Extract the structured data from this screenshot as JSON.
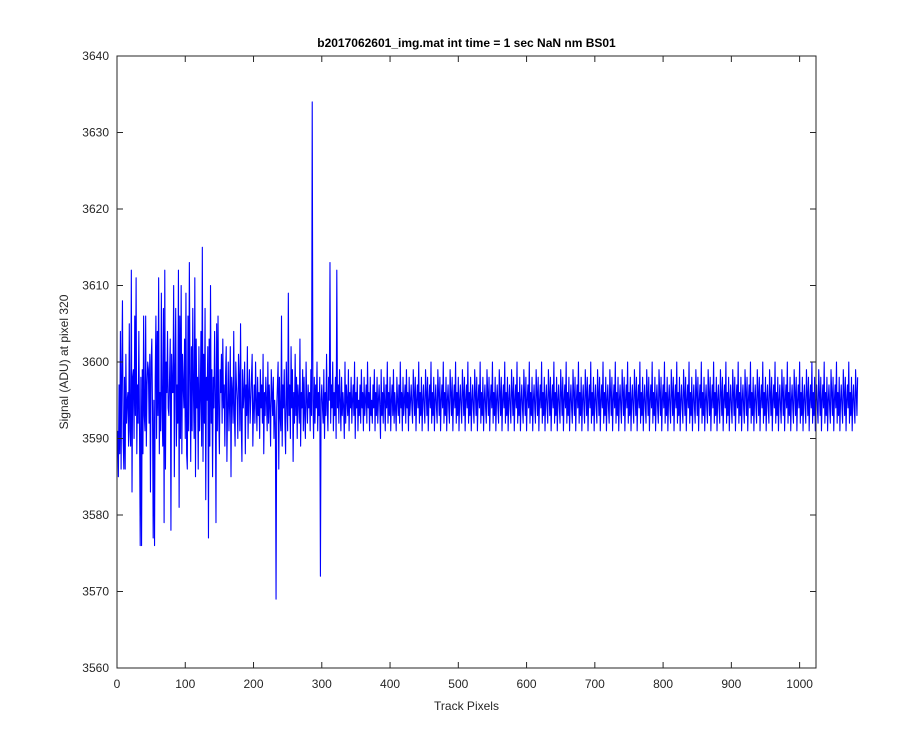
{
  "chart_data": {
    "type": "line",
    "title": "b2017062601_img.mat int time = 1 sec  NaN nm BS01",
    "xlabel": "Track Pixels",
    "ylabel": "Signal (ADU) at pixel 320",
    "xlim": [
      0,
      1024
    ],
    "ylim": [
      3560,
      3640
    ],
    "xticks": [
      0,
      100,
      200,
      300,
      400,
      500,
      600,
      700,
      800,
      900,
      1000
    ],
    "yticks": [
      3560,
      3570,
      3580,
      3590,
      3600,
      3610,
      3620,
      3630,
      3640
    ],
    "xtick_labels": [
      "0",
      "100",
      "200",
      "300",
      "400",
      "500",
      "600",
      "700",
      "800",
      "900",
      "1000"
    ],
    "ytick_labels": [
      "3560",
      "3570",
      "3580",
      "3590",
      "3600",
      "3610",
      "3620",
      "3630",
      "3640"
    ],
    "grid": false,
    "series": [
      {
        "color": "#0000ff",
        "x_start": 1,
        "x_step": 1,
        "values": [
          3591,
          3585,
          3597,
          3588,
          3604,
          3586,
          3599,
          3608,
          3590,
          3586,
          3598,
          3586,
          3601,
          3592,
          3595,
          3596,
          3589,
          3605,
          3591,
          3589,
          3612,
          3583,
          3598,
          3599,
          3590,
          3606,
          3593,
          3611,
          3588,
          3597,
          3592,
          3604,
          3591,
          3576,
          3598,
          3576,
          3599,
          3588,
          3606,
          3593,
          3591,
          3606,
          3589,
          3597,
          3600,
          3599,
          3592,
          3601,
          3583,
          3600,
          3603,
          3594,
          3577,
          3595,
          3576,
          3598,
          3606,
          3590,
          3604,
          3593,
          3611,
          3588,
          3596,
          3591,
          3609,
          3594,
          3589,
          3607,
          3579,
          3612,
          3586,
          3600,
          3596,
          3604,
          3594,
          3593,
          3598,
          3603,
          3578,
          3601,
          3596,
          3596,
          3610,
          3585,
          3599,
          3607,
          3589,
          3597,
          3592,
          3612,
          3581,
          3606,
          3590,
          3610,
          3588,
          3601,
          3597,
          3594,
          3603,
          3590,
          3609,
          3588,
          3586,
          3606,
          3591,
          3613,
          3598,
          3587,
          3602,
          3591,
          3607,
          3596,
          3590,
          3611,
          3585,
          3603,
          3594,
          3598,
          3586,
          3602,
          3591,
          3595,
          3604,
          3589,
          3615,
          3587,
          3601,
          3592,
          3607,
          3582,
          3598,
          3595,
          3602,
          3577,
          3603,
          3589,
          3610,
          3592,
          3599,
          3585,
          3598,
          3594,
          3604,
          3596,
          3579,
          3605,
          3591,
          3606,
          3593,
          3588,
          3599,
          3596,
          3601,
          3592,
          3603,
          3594,
          3597,
          3589,
          3598,
          3602,
          3587,
          3594,
          3600,
          3591,
          3595,
          3602,
          3585,
          3598,
          3596,
          3592,
          3604,
          3593,
          3589,
          3600,
          3597,
          3595,
          3590,
          3601,
          3598,
          3591,
          3605,
          3592,
          3587,
          3599,
          3594,
          3596,
          3600,
          3588,
          3597,
          3593,
          3602,
          3590,
          3596,
          3599,
          3592,
          3595,
          3598,
          3601,
          3589,
          3594,
          3597,
          3592,
          3600,
          3595,
          3591,
          3598,
          3593,
          3596,
          3590,
          3599,
          3594,
          3597,
          3592,
          3601,
          3588,
          3596,
          3593,
          3598,
          3595,
          3591,
          3600,
          3592,
          3597,
          3594,
          3589,
          3599,
          3596,
          3593,
          3598,
          3590,
          3595,
          3592,
          3569,
          3594,
          3597,
          3600,
          3586,
          3598,
          3593,
          3591,
          3606,
          3589,
          3597,
          3594,
          3599,
          3592,
          3588,
          3600,
          3595,
          3591,
          3609,
          3593,
          3597,
          3590,
          3602,
          3594,
          3599,
          3587,
          3596,
          3592,
          3601,
          3593,
          3598,
          3590,
          3597,
          3595,
          3592,
          3603,
          3589,
          3596,
          3594,
          3599,
          3591,
          3598,
          3593,
          3590,
          3600,
          3595,
          3592,
          3597,
          3594,
          3596,
          3591,
          3599,
          3593,
          3634,
          3595,
          3590,
          3598,
          3592,
          3597,
          3594,
          3600,
          3591,
          3596,
          3593,
          3598,
          3572,
          3595,
          3597,
          3594,
          3592,
          3599,
          3590,
          3596,
          3593,
          3601,
          3594,
          3591,
          3598,
          3595,
          3613,
          3592,
          3597,
          3594,
          3600,
          3591,
          3596,
          3593,
          3598,
          3590,
          3612,
          3594,
          3597,
          3592,
          3599,
          3595,
          3591,
          3598,
          3593,
          3596,
          3594,
          3590,
          3600,
          3592,
          3597,
          3595,
          3593,
          3599,
          3591,
          3596,
          3594,
          3598,
          3592,
          3595,
          3597,
          3593,
          3600,
          3590,
          3596,
          3594,
          3598,
          3591,
          3595,
          3593,
          3597,
          3592,
          3599,
          3594,
          3596,
          3591,
          3598,
          3593,
          3595,
          3597,
          3592,
          3600,
          3594,
          3596,
          3591,
          3598,
          3593,
          3595,
          3592,
          3597,
          3594,
          3599,
          3591,
          3596,
          3593,
          3598,
          3592,
          3595,
          3597,
          3594,
          3590,
          3599,
          3593,
          3596,
          3592,
          3598,
          3595,
          3591,
          3597,
          3594,
          3600,
          3592,
          3596,
          3593,
          3598,
          3591,
          3595,
          3597,
          3593,
          3599,
          3592,
          3596,
          3594,
          3591,
          3598,
          3595,
          3593,
          3597,
          3592,
          3600,
          3594,
          3596,
          3591,
          3598,
          3593,
          3595,
          3597,
          3592,
          3599,
          3594,
          3596,
          3591,
          3598,
          3593,
          3595,
          3597,
          3594,
          3592,
          3599,
          3596,
          3593,
          3598,
          3591,
          3595,
          3597,
          3594,
          3600,
          3592,
          3596,
          3593,
          3598,
          3591,
          3595,
          3597,
          3594,
          3592,
          3599,
          3596,
          3593,
          3598,
          3591,
          3595,
          3597,
          3594,
          3600,
          3592,
          3596,
          3593,
          3598,
          3591,
          3595,
          3597,
          3594,
          3592,
          3599,
          3596,
          3593,
          3598,
          3591,
          3595,
          3597,
          3594,
          3600,
          3592,
          3596,
          3593,
          3598,
          3591,
          3595,
          3597,
          3594,
          3592,
          3599,
          3596,
          3593,
          3598,
          3591,
          3595,
          3597,
          3594,
          3600,
          3592,
          3596,
          3593,
          3598,
          3591,
          3595,
          3597,
          3594,
          3592,
          3599,
          3596,
          3593,
          3598,
          3591,
          3595,
          3597,
          3594,
          3600,
          3592,
          3596,
          3593,
          3598,
          3591,
          3595,
          3597,
          3594,
          3592,
          3599,
          3596,
          3593,
          3598,
          3591,
          3595,
          3597,
          3594,
          3600,
          3592,
          3596,
          3593,
          3598,
          3591,
          3595,
          3597,
          3594,
          3592,
          3599,
          3596,
          3593,
          3598,
          3591,
          3595,
          3597,
          3594,
          3600,
          3592,
          3596,
          3593,
          3598,
          3591,
          3595,
          3597,
          3594,
          3592,
          3599,
          3596,
          3593,
          3598,
          3591,
          3595,
          3597,
          3594,
          3600,
          3592,
          3596,
          3593,
          3598,
          3591,
          3595,
          3597,
          3594,
          3592,
          3599,
          3596,
          3593,
          3598,
          3591,
          3595,
          3597,
          3594,
          3600,
          3592,
          3596,
          3593,
          3598,
          3591,
          3595,
          3597,
          3594,
          3592,
          3599,
          3596,
          3593,
          3598,
          3591,
          3595,
          3597,
          3594,
          3600,
          3592,
          3596,
          3593,
          3598,
          3591,
          3595,
          3597,
          3594,
          3592,
          3599,
          3596,
          3593,
          3598,
          3591,
          3595,
          3597,
          3594,
          3600,
          3592,
          3596,
          3593,
          3598,
          3591,
          3595,
          3597,
          3594,
          3592,
          3599,
          3596,
          3593,
          3598,
          3591,
          3595,
          3597,
          3594,
          3600,
          3592,
          3596,
          3593,
          3598,
          3591,
          3595,
          3597,
          3594,
          3592,
          3599,
          3596,
          3593,
          3598,
          3591,
          3595,
          3597,
          3594,
          3600,
          3592,
          3596,
          3593,
          3598,
          3591,
          3595,
          3597,
          3594,
          3592,
          3599,
          3596,
          3593,
          3598,
          3591,
          3595,
          3597,
          3594,
          3600,
          3592,
          3596,
          3593,
          3598,
          3591,
          3595,
          3597,
          3594,
          3592,
          3599,
          3596,
          3593,
          3598,
          3591,
          3595,
          3597,
          3594,
          3600,
          3592,
          3596,
          3593,
          3598,
          3591,
          3595,
          3597,
          3594,
          3592,
          3599,
          3596,
          3593,
          3598,
          3591,
          3595,
          3597,
          3594,
          3600,
          3592,
          3596,
          3593,
          3598,
          3591,
          3595,
          3597,
          3594,
          3592,
          3599,
          3596,
          3593,
          3598,
          3591,
          3595,
          3597,
          3594,
          3600,
          3592,
          3596,
          3593,
          3598,
          3591,
          3595,
          3597,
          3594,
          3592,
          3599,
          3596,
          3593,
          3598,
          3591,
          3595,
          3597,
          3594,
          3600,
          3592,
          3596,
          3593,
          3598,
          3591,
          3595,
          3597,
          3594,
          3592,
          3599,
          3596,
          3593,
          3598,
          3591,
          3595,
          3597,
          3594,
          3600,
          3592,
          3596,
          3593,
          3598,
          3591,
          3595,
          3597,
          3594,
          3592,
          3599,
          3596,
          3593,
          3598,
          3591,
          3595,
          3597,
          3594,
          3600,
          3592,
          3596,
          3593,
          3598,
          3591,
          3595,
          3597,
          3594,
          3592,
          3599,
          3596,
          3593,
          3598,
          3591,
          3595,
          3597,
          3594,
          3600,
          3592,
          3596,
          3593,
          3598,
          3591,
          3595,
          3597,
          3594,
          3592,
          3599,
          3596,
          3593,
          3598,
          3591,
          3595,
          3597,
          3594,
          3600,
          3592,
          3596,
          3593,
          3598,
          3591,
          3595,
          3597,
          3594,
          3592,
          3599,
          3596,
          3593,
          3598,
          3591,
          3595,
          3597,
          3594,
          3600,
          3592,
          3596,
          3593,
          3598,
          3591,
          3595,
          3597,
          3594,
          3592,
          3599,
          3596,
          3593,
          3598,
          3591,
          3595,
          3597,
          3594,
          3600,
          3592,
          3596,
          3593,
          3598,
          3591,
          3595,
          3597,
          3594,
          3592,
          3599,
          3596,
          3593,
          3598,
          3591,
          3595,
          3597,
          3594,
          3600,
          3592,
          3596,
          3593,
          3598,
          3591,
          3595,
          3597,
          3594,
          3592,
          3599,
          3596,
          3593,
          3598,
          3591,
          3595,
          3597,
          3594,
          3600,
          3592,
          3596,
          3593,
          3598,
          3591,
          3595,
          3597,
          3594,
          3592,
          3599,
          3596,
          3593,
          3598,
          3591,
          3595,
          3597,
          3594,
          3600,
          3592,
          3596,
          3593,
          3598,
          3591,
          3595,
          3597,
          3594,
          3592,
          3599,
          3596,
          3593,
          3598,
          3591,
          3595,
          3597,
          3594,
          3600,
          3592,
          3596,
          3593,
          3598,
          3591,
          3595,
          3597,
          3594,
          3592,
          3599,
          3596,
          3593,
          3598,
          3591,
          3595,
          3597,
          3594,
          3600,
          3592,
          3596,
          3593,
          3598,
          3591,
          3595,
          3597,
          3594,
          3592,
          3599,
          3596,
          3593,
          3598,
          3591,
          3595,
          3597,
          3594,
          3600,
          3592,
          3596,
          3593,
          3598,
          3591,
          3595,
          3597,
          3594,
          3592,
          3599,
          3596,
          3593,
          3598,
          3591,
          3595,
          3597,
          3594,
          3600,
          3592,
          3596,
          3593,
          3598,
          3591,
          3595,
          3597,
          3594,
          3592,
          3599,
          3596,
          3593,
          3598,
          3591,
          3595,
          3597,
          3594,
          3600,
          3592,
          3596,
          3593,
          3598,
          3591,
          3595,
          3597,
          3594,
          3592,
          3599,
          3596,
          3593,
          3598,
          3591,
          3595,
          3597,
          3594,
          3600,
          3592,
          3596,
          3593,
          3598,
          3591,
          3595,
          3597,
          3594,
          3592,
          3599,
          3596,
          3593,
          3598,
          3591,
          3595,
          3597,
          3594,
          3600,
          3592,
          3596,
          3593,
          3598,
          3591,
          3595,
          3597,
          3594,
          3592,
          3599,
          3596,
          3593,
          3598,
          3591,
          3595,
          3597,
          3594,
          3600,
          3592,
          3596,
          3593,
          3598,
          3591,
          3595,
          3597,
          3594,
          3592,
          3599,
          3596,
          3593,
          3598,
          3591,
          3595,
          3597,
          3594,
          3600,
          3592,
          3596,
          3593,
          3598,
          3591,
          3595,
          3597,
          3594,
          3592,
          3599,
          3596,
          3593,
          3598
        ]
      }
    ]
  }
}
